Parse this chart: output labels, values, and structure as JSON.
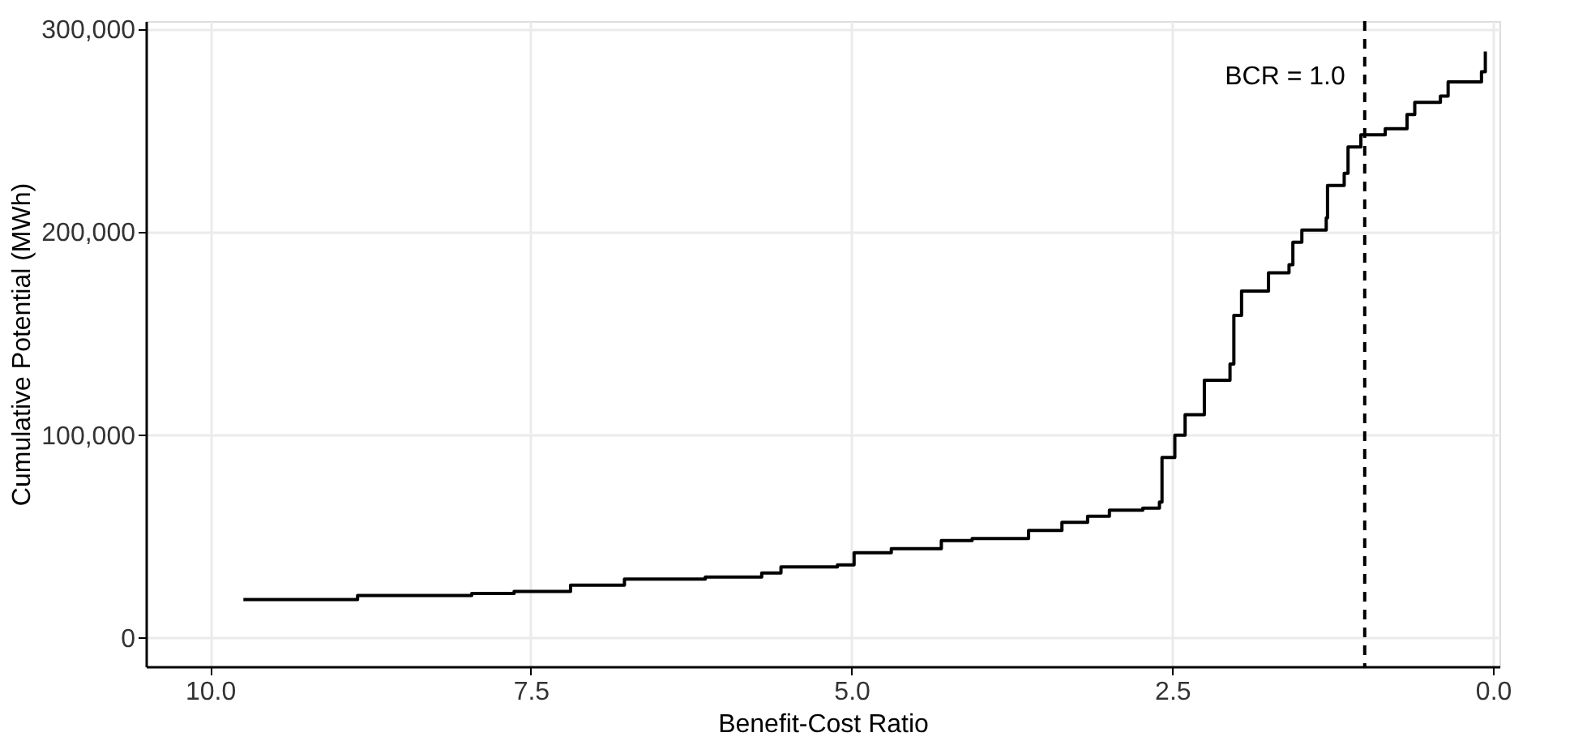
{
  "chart_data": {
    "type": "step",
    "xlabel": "Benefit-Cost Ratio",
    "ylabel": "Cumulative Potential (MWh)",
    "x": [
      9.74,
      8.85,
      7.96,
      7.63,
      7.19,
      6.77,
      6.14,
      5.7,
      5.55,
      5.11,
      4.98,
      4.69,
      4.3,
      4.06,
      3.62,
      3.36,
      3.16,
      2.99,
      2.73,
      2.6,
      2.58,
      2.48,
      2.4,
      2.25,
      2.05,
      2.02,
      1.96,
      1.75,
      1.59,
      1.56,
      1.49,
      1.3,
      1.29,
      1.16,
      1.13,
      1.03,
      0.84,
      0.67,
      0.61,
      0.41,
      0.35,
      0.09,
      0.06
    ],
    "series": [
      {
        "color": "#000000",
        "values": [
          19000,
          21000,
          22000,
          23000,
          26000,
          29000,
          30000,
          32000,
          35000,
          36000,
          42000,
          44000,
          48000,
          49000,
          53000,
          57000,
          60000,
          63000,
          64000,
          67000,
          89000,
          100000,
          110000,
          127000,
          135000,
          159000,
          171000,
          180000,
          184000,
          195000,
          201000,
          207000,
          223000,
          229000,
          242000,
          248000,
          251000,
          258000,
          264000,
          267000,
          274000,
          279000,
          289000
        ]
      }
    ],
    "xlim": [
      10.5,
      -0.05
    ],
    "xticks": [
      {
        "value": 10,
        "label": "10.0"
      },
      {
        "value": 7.5,
        "label": "7.5"
      },
      {
        "value": 5,
        "label": "5.0"
      },
      {
        "value": 2.5,
        "label": "2.5"
      },
      {
        "value": 0,
        "label": "0.0"
      }
    ],
    "ylim": [
      -14000,
      304000
    ],
    "yticks": [
      {
        "value": 0,
        "label": "0"
      },
      {
        "value": 100000,
        "label": "100,000"
      },
      {
        "value": 200000,
        "label": "200,000"
      },
      {
        "value": 300000,
        "label": "300,000"
      }
    ],
    "ref_lines": [
      {
        "axis": "x",
        "value": 1.0,
        "label": "BCR = 1.0",
        "line_style": "dashed",
        "color": "#000000"
      }
    ],
    "grid": true
  }
}
